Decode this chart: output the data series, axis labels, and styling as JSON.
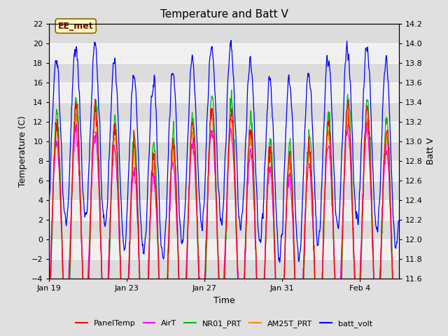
{
  "title": "Temperature and Batt V",
  "xlabel": "Time",
  "ylabel_left": "Temperature (C)",
  "ylabel_right": "Batt V",
  "ylim_left": [
    -4,
    22
  ],
  "ylim_right": [
    11.6,
    14.2
  ],
  "yticks_left": [
    -4,
    -2,
    0,
    2,
    4,
    6,
    8,
    10,
    12,
    14,
    16,
    18,
    20,
    22
  ],
  "yticks_right": [
    11.6,
    11.8,
    12.0,
    12.2,
    12.4,
    12.6,
    12.8,
    13.0,
    13.2,
    13.4,
    13.6,
    13.8,
    14.0,
    14.2
  ],
  "xtick_positions": [
    0,
    4,
    8,
    12,
    16
  ],
  "xtick_labels": [
    "Jan 19",
    "Jan 23",
    "Jan 27",
    "Jan 31",
    "Feb 4"
  ],
  "annotation_text": "EE_met",
  "legend_labels": [
    "PanelTemp",
    "AirT",
    "NR01_PRT",
    "AM25T_PRT",
    "batt_volt"
  ],
  "line_colors": [
    "#ff0000",
    "#ff00ff",
    "#00bb00",
    "#ff8800",
    "#0000ff"
  ],
  "fig_bg_color": "#e0e0e0",
  "plot_bg_color": "#f8f8f8",
  "band_color_dark": "#dcdcdc",
  "band_color_light": "#f0f0f0",
  "grid_color": "#ffffff",
  "num_days": 18,
  "seed": 42
}
